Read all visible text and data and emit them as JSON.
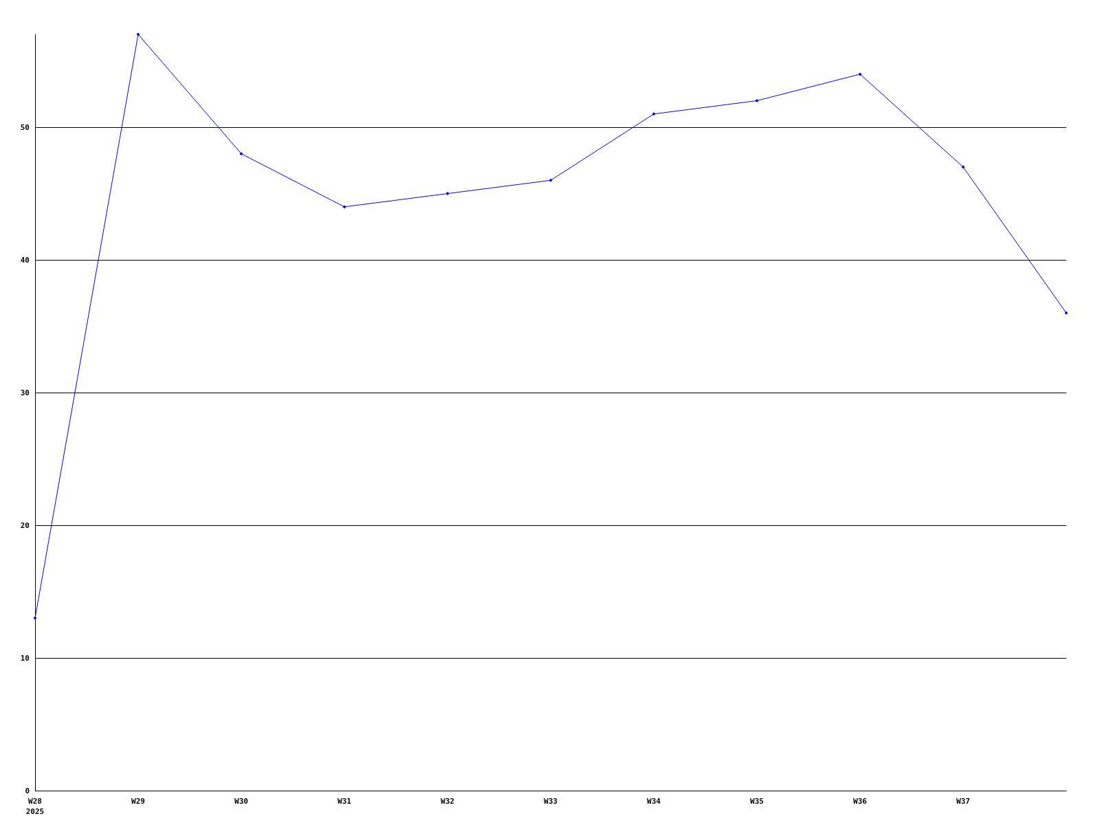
{
  "chart_data": {
    "type": "line",
    "categories": [
      "W28\n2025",
      "W29",
      "W30",
      "W31",
      "W32",
      "W33",
      "W34",
      "W35",
      "W36",
      "W37",
      null
    ],
    "series": [
      {
        "color": "#0000ff",
        "values": [
          13,
          57,
          48,
          44,
          45,
          46,
          51,
          52,
          54,
          47,
          36
        ]
      }
    ],
    "ylim": [
      0,
      57
    ],
    "yticks": [
      0,
      10,
      20,
      30,
      40,
      50
    ],
    "grid": "y",
    "marker": "diamond"
  }
}
